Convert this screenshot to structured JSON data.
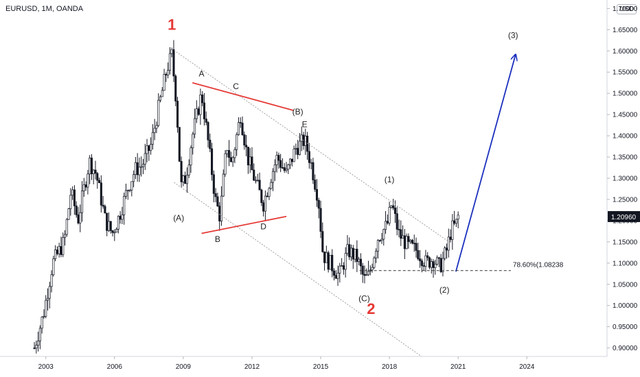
{
  "symbol_label": "EURUSD, 1M, OANDA",
  "currency_badge": "USD",
  "chart_data": {
    "type": "candlestick",
    "x_ticks": [
      "2003",
      "2006",
      "2009",
      "2012",
      "2015",
      "2018",
      "2021",
      "2024"
    ],
    "y_ticks": [
      "0.90000",
      "0.95000",
      "1.00000",
      "1.05000",
      "1.10000",
      "1.15000",
      "1.20000",
      "1.25000",
      "1.30000",
      "1.35000",
      "1.40000",
      "1.45000",
      "1.50000",
      "1.55000",
      "1.60000",
      "1.65000",
      "1.70000"
    ],
    "ylim": [
      0.88,
      1.72
    ],
    "xlim": [
      2001.0,
      2027.5
    ],
    "last_price": "1.20960",
    "fib_label": "78.60%(1.08238",
    "fib_value": 1.08238,
    "price_path": [
      [
        2002.5,
        0.9
      ],
      [
        2002.9,
        0.98
      ],
      [
        2003.3,
        1.1
      ],
      [
        2003.8,
        1.15
      ],
      [
        2004.1,
        1.27
      ],
      [
        2004.4,
        1.2
      ],
      [
        2004.9,
        1.34
      ],
      [
        2005.2,
        1.31
      ],
      [
        2005.6,
        1.2
      ],
      [
        2005.9,
        1.17
      ],
      [
        2006.2,
        1.21
      ],
      [
        2006.6,
        1.28
      ],
      [
        2006.9,
        1.32
      ],
      [
        2007.2,
        1.33
      ],
      [
        2007.6,
        1.38
      ],
      [
        2007.9,
        1.46
      ],
      [
        2008.3,
        1.56
      ],
      [
        2008.5,
        1.59
      ],
      [
        2008.7,
        1.48
      ],
      [
        2008.9,
        1.28
      ],
      [
        2009.1,
        1.3
      ],
      [
        2009.4,
        1.4
      ],
      [
        2009.8,
        1.5
      ],
      [
        2010.1,
        1.38
      ],
      [
        2010.4,
        1.25
      ],
      [
        2010.6,
        1.21
      ],
      [
        2010.9,
        1.38
      ],
      [
        2011.1,
        1.33
      ],
      [
        2011.5,
        1.45
      ],
      [
        2011.8,
        1.35
      ],
      [
        2012.1,
        1.3
      ],
      [
        2012.5,
        1.24
      ],
      [
        2012.8,
        1.3
      ],
      [
        2013.1,
        1.35
      ],
      [
        2013.5,
        1.31
      ],
      [
        2013.9,
        1.37
      ],
      [
        2014.3,
        1.39
      ],
      [
        2014.6,
        1.33
      ],
      [
        2014.9,
        1.25
      ],
      [
        2015.1,
        1.12
      ],
      [
        2015.4,
        1.1
      ],
      [
        2015.8,
        1.07
      ],
      [
        2016.2,
        1.13
      ],
      [
        2016.6,
        1.11
      ],
      [
        2016.9,
        1.06
      ],
      [
        2017.1,
        1.07
      ],
      [
        2017.5,
        1.16
      ],
      [
        2017.9,
        1.19
      ],
      [
        2018.1,
        1.24
      ],
      [
        2018.4,
        1.17
      ],
      [
        2018.8,
        1.14
      ],
      [
        2019.2,
        1.13
      ],
      [
        2019.6,
        1.1
      ],
      [
        2019.9,
        1.11
      ],
      [
        2020.2,
        1.09
      ],
      [
        2020.5,
        1.13
      ],
      [
        2020.7,
        1.18
      ],
      [
        2020.9,
        1.19
      ],
      [
        2021.0,
        1.21
      ]
    ],
    "trend_lines": [
      {
        "name": "channel-upper",
        "color": "#9e9e9e",
        "dash": true,
        "from": [
          2008.5,
          1.605
        ],
        "to": [
          2020.6,
          1.15
        ]
      },
      {
        "name": "channel-lower",
        "color": "#9e9e9e",
        "dash": true,
        "from": [
          2008.6,
          1.29
        ],
        "to": [
          2019.4,
          0.88
        ]
      },
      {
        "name": "triangle-upper",
        "color": "#e53935",
        "dash": false,
        "from": [
          2009.4,
          1.525
        ],
        "to": [
          2013.8,
          1.46
        ]
      },
      {
        "name": "triangle-lower",
        "color": "#e53935",
        "dash": false,
        "from": [
          2009.8,
          1.17
        ],
        "to": [
          2013.5,
          1.21
        ]
      },
      {
        "name": "projection-arrow",
        "color": "#1a2fbe",
        "dash": false,
        "arrow": true,
        "from": [
          2020.9,
          1.08
        ],
        "to": [
          2023.5,
          1.59
        ]
      },
      {
        "name": "fib-level",
        "color": "#333333",
        "dash": true,
        "from": [
          2016.7,
          1.08238
        ],
        "to": [
          2023.3,
          1.08238
        ]
      }
    ],
    "wave_labels": [
      {
        "text": "1",
        "x": 2008.5,
        "y": 1.65,
        "color": "#e53935",
        "size": 22,
        "bold": true
      },
      {
        "text": "2",
        "x": 2017.2,
        "y": 0.98,
        "color": "#e53935",
        "size": 22,
        "bold": true
      },
      {
        "text": "A",
        "x": 2009.8,
        "y": 1.54,
        "color": "#222222",
        "size": 12
      },
      {
        "text": "C",
        "x": 2011.3,
        "y": 1.51,
        "color": "#222222",
        "size": 12
      },
      {
        "text": "(B)",
        "x": 2014.0,
        "y": 1.45,
        "color": "#222222",
        "size": 12
      },
      {
        "text": "E",
        "x": 2014.3,
        "y": 1.42,
        "color": "#222222",
        "size": 12
      },
      {
        "text": "(A)",
        "x": 2008.8,
        "y": 1.2,
        "color": "#222222",
        "size": 12
      },
      {
        "text": "B",
        "x": 2010.5,
        "y": 1.15,
        "color": "#222222",
        "size": 12
      },
      {
        "text": "D",
        "x": 2012.5,
        "y": 1.18,
        "color": "#222222",
        "size": 12
      },
      {
        "text": "(1)",
        "x": 2018.0,
        "y": 1.29,
        "color": "#222222",
        "size": 12
      },
      {
        "text": "(2)",
        "x": 2020.4,
        "y": 1.03,
        "color": "#222222",
        "size": 12
      },
      {
        "text": "(C)",
        "x": 2016.9,
        "y": 1.01,
        "color": "#222222",
        "size": 12
      },
      {
        "text": "(3)",
        "x": 2023.4,
        "y": 1.63,
        "color": "#222222",
        "size": 12
      }
    ]
  }
}
